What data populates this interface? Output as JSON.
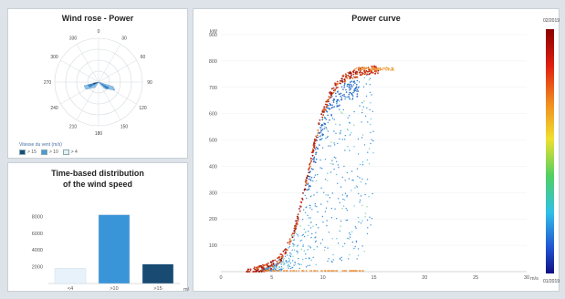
{
  "rose": {
    "title": "Wind rose - Power",
    "legend_title": "Vitesse du vent (m/s)",
    "legend": [
      {
        "label": "> 15",
        "color": "#1a4c7a"
      },
      {
        "label": "> 10",
        "color": "#4a9ad6"
      },
      {
        "label": "> 4",
        "color": "#e6f0f8"
      }
    ],
    "directions": [
      "0",
      "30",
      "60",
      "90",
      "120",
      "150",
      "180",
      "210",
      "240",
      "270",
      "300",
      "330"
    ]
  },
  "distribution": {
    "title_line1": "Time-based distribution",
    "title_line2": "of the wind speed",
    "unit": "m/s",
    "chart_data": {
      "type": "bar",
      "categories": [
        "<4",
        ">10",
        ">15"
      ],
      "values": [
        1800,
        8200,
        2300
      ],
      "yticks": [
        "2000",
        "4000",
        "6000",
        "8000"
      ],
      "ylim": [
        0,
        10000
      ],
      "colors": [
        "#e8f2fb",
        "#3a95d8",
        "#184a72"
      ]
    }
  },
  "curve": {
    "title": "Power curve",
    "unit_x": "m/s",
    "colorbar_top": "02/2019",
    "colorbar_bottom": "01/2019",
    "chart_data": {
      "type": "scatter",
      "xlim": [
        0,
        30
      ],
      "ylim": [
        0,
        900
      ],
      "xticks": [
        "0",
        "5",
        "10",
        "15",
        "20",
        "25",
        "30"
      ],
      "yticks": [
        "100",
        "200",
        "300",
        "400",
        "500",
        "600",
        "700",
        "800",
        "900"
      ],
      "ylabel": "kW"
    }
  }
}
